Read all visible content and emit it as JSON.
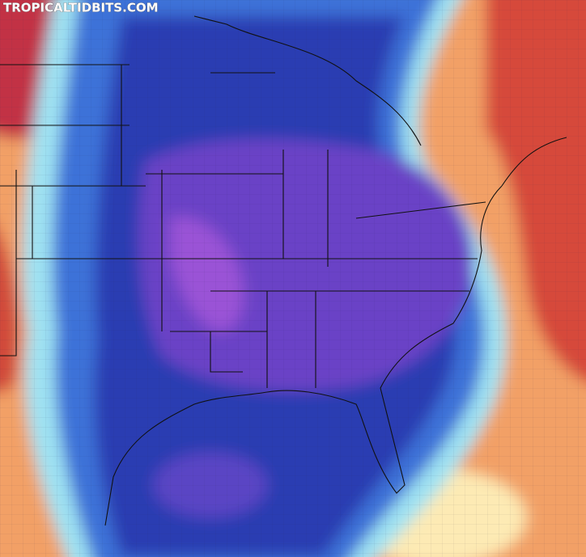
{
  "watermark": "TROPICALTIDBITS.COM"
}
